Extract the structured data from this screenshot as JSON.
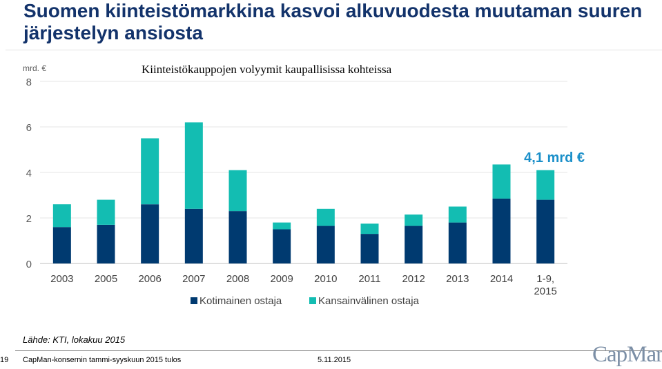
{
  "slide": {
    "title": "Suomen kiinteistömarkkina kasvoi alkuvuodesta muutaman suuren järjestelyn ansiosta",
    "source": "Lähde: KTI, lokakuu 2015",
    "page_number": "19",
    "footer_text": "CapMan-konsernin tammi-syyskuun 2015 tulos",
    "footer_date": "5.11.2015",
    "logo_text": "CapMan"
  },
  "colors": {
    "title": "#13336b",
    "domestic": "#003a70",
    "international": "#13bdb2",
    "callout": "#1a8fc9"
  },
  "chart_data": {
    "type": "bar",
    "stacked": true,
    "title": "Kiinteistökauppojen volyymit kaupallisissa kohteissa",
    "unit_label": "mrd. €",
    "categories": [
      "2003",
      "2005",
      "2006",
      "2007",
      "2008",
      "2009",
      "2010",
      "2011",
      "2012",
      "2013",
      "2014",
      "1-9, 2015"
    ],
    "series": [
      {
        "name": "Kotimainen ostaja",
        "color": "#003a70",
        "values": [
          1.6,
          1.7,
          2.6,
          2.4,
          2.3,
          1.5,
          1.65,
          1.3,
          1.65,
          1.8,
          2.85,
          2.8
        ]
      },
      {
        "name": "Kansainvälinen ostaja",
        "color": "#13bdb2",
        "values": [
          1.0,
          1.1,
          2.9,
          3.8,
          1.8,
          0.3,
          0.75,
          0.45,
          0.5,
          0.7,
          1.5,
          1.3
        ]
      }
    ],
    "ylim": [
      0,
      8
    ],
    "yticks": [
      0,
      2,
      4,
      6,
      8
    ],
    "grid": true,
    "legend": "bottom",
    "annotation": {
      "text": "4,1 mrd €",
      "category": "1-9, 2015"
    }
  }
}
